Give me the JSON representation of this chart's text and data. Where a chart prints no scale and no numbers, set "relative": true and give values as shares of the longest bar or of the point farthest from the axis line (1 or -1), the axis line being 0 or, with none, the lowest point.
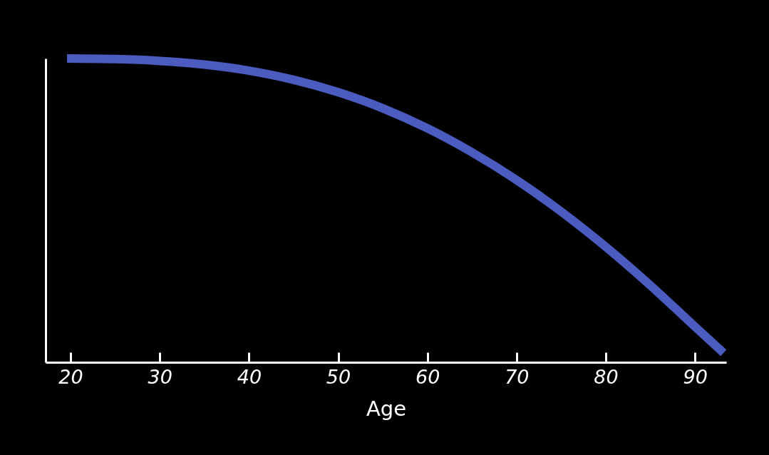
{
  "chart_data": {
    "type": "line",
    "xlabel": "Age",
    "relative": true,
    "x": [
      19.6,
      25,
      30,
      35,
      40,
      45,
      50,
      55,
      60,
      65,
      70,
      75,
      80,
      85,
      90,
      93.2
    ],
    "series": [
      {
        "color": "#4b5bbf",
        "values": [
          1,
          0.998,
          0.992,
          0.98,
          0.96,
          0.93,
          0.889,
          0.836,
          0.77,
          0.691,
          0.6,
          0.496,
          0.38,
          0.253,
          0.117,
          0.031
        ]
      }
    ],
    "xlim": [
      17.2,
      93.5
    ],
    "xticks": [
      20,
      30,
      40,
      50,
      60,
      70,
      80,
      90
    ]
  }
}
